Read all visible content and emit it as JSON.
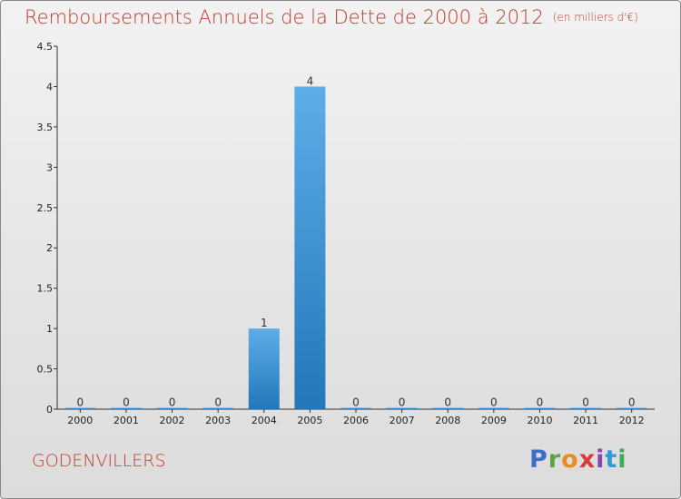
{
  "header": {
    "title": "Remboursements Annuels de la Dette de 2000 à 2012",
    "unit": "(en milliers d'€)"
  },
  "footer": {
    "commune": "GODENVILLERS",
    "logo": [
      "P",
      "r",
      "o",
      "x",
      "i",
      "t",
      "i"
    ]
  },
  "chart_data": {
    "type": "bar",
    "title": "Remboursements Annuels de la Dette de 2000 à 2012",
    "unit": "(en milliers d'€)",
    "xlabel": "",
    "ylabel": "",
    "categories": [
      "2000",
      "2001",
      "2002",
      "2003",
      "2004",
      "2005",
      "2006",
      "2007",
      "2008",
      "2009",
      "2010",
      "2011",
      "2012"
    ],
    "values": [
      0,
      0,
      0,
      0,
      1,
      4,
      0,
      0,
      0,
      0,
      0,
      0,
      0
    ],
    "ylim": [
      0,
      4.5
    ],
    "yticks": [
      0,
      0.5,
      1,
      1.5,
      2,
      2.5,
      3,
      3.5,
      4,
      4.5
    ],
    "ytick_labels": [
      "0",
      "0.5",
      "1",
      "1.5",
      "2",
      "2.5",
      "3",
      "3.5",
      "4",
      "4.5"
    ],
    "grid": false,
    "colors": {
      "bar_top": "#5dade8",
      "bar_bottom": "#2377b8",
      "axis": "#333333"
    }
  }
}
